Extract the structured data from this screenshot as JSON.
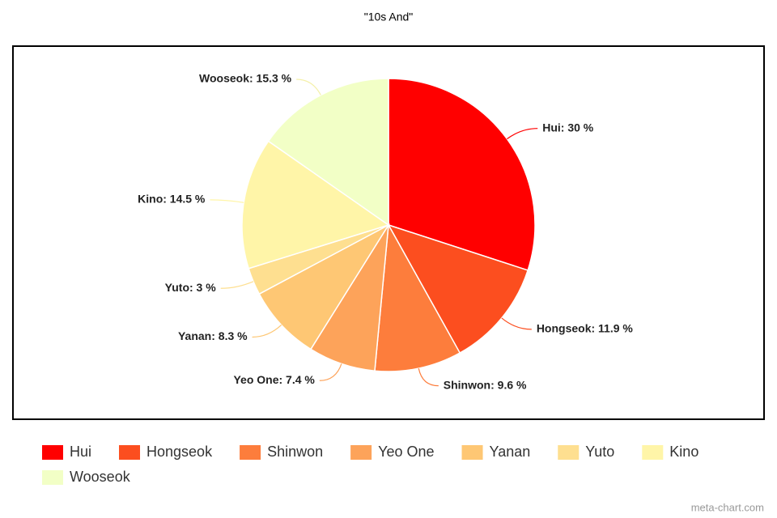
{
  "chart_data": {
    "type": "pie",
    "title": "\"10s And\"",
    "categories": [
      "Hui",
      "Hongseok",
      "Shinwon",
      "Yeo One",
      "Yanan",
      "Yuto",
      "Kino",
      "Wooseok"
    ],
    "values": [
      30,
      11.9,
      9.6,
      7.4,
      8.3,
      3,
      14.5,
      15.3
    ],
    "value_labels": [
      "Hui: 30 %",
      "Hongseok: 11.9 %",
      "Shinwon: 9.6 %",
      "Yeo One: 7.4 %",
      "Yanan: 8.3 %",
      "Yuto: 3 %",
      "Kino: 14.5 %",
      "Wooseok: 15.3 %"
    ],
    "colors": [
      "#ff0000",
      "#fc4e1f",
      "#fd7d3c",
      "#fda35a",
      "#fec774",
      "#fedf90",
      "#fff5a8",
      "#f2ffc6"
    ],
    "legend": "bottom",
    "credit": "meta-chart.com"
  }
}
